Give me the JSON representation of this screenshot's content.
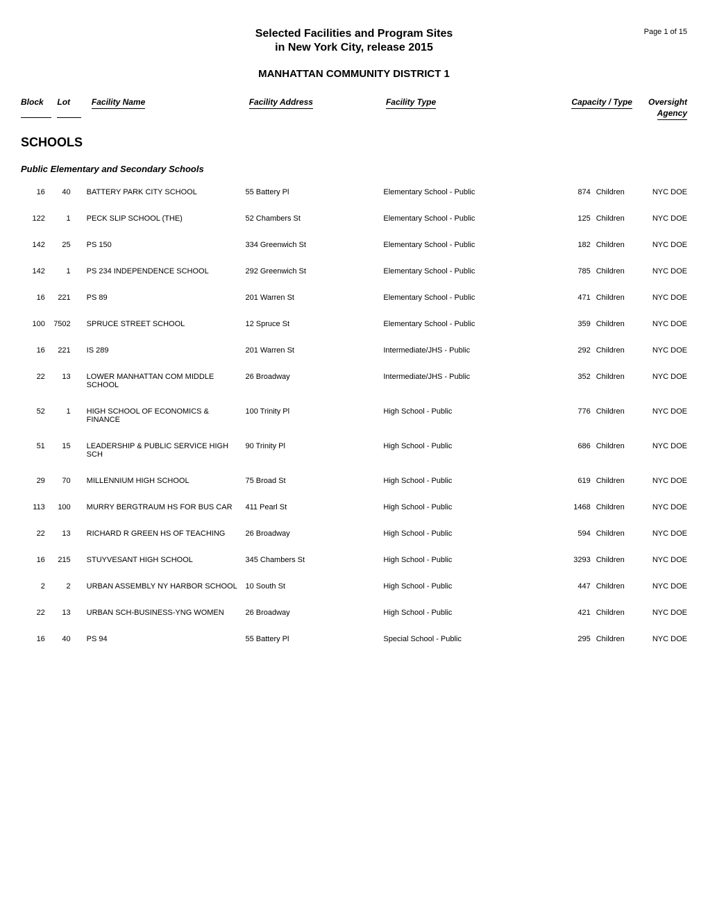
{
  "header": {
    "page_number": "Page 1 of 15",
    "title_line1": "Selected Facilities and Program Sites",
    "title_line2": "in New York City, release 2015",
    "district": "MANHATTAN COMMUNITY DISTRICT 1"
  },
  "columns": {
    "block": "Block",
    "lot": "Lot",
    "name": "Facility Name",
    "address": "Facility Address",
    "type": "Facility Type",
    "capacity": "Capacity / Type",
    "agency_line1": "Oversight",
    "agency_line2": "Agency"
  },
  "section": {
    "title": "SCHOOLS",
    "subsection": "Public Elementary and Secondary Schools"
  },
  "rows": [
    {
      "block": "16",
      "lot": "40",
      "name": "BATTERY PARK CITY SCHOOL",
      "address": "55 Battery Pl",
      "type": "Elementary School - Public",
      "capacity": "874",
      "capacity_type": "Children",
      "agency": "NYC DOE"
    },
    {
      "block": "122",
      "lot": "1",
      "name": "PECK SLIP SCHOOL (THE)",
      "address": "52 Chambers St",
      "type": "Elementary School - Public",
      "capacity": "125",
      "capacity_type": "Children",
      "agency": "NYC DOE"
    },
    {
      "block": "142",
      "lot": "25",
      "name": "PS 150",
      "address": "334 Greenwich St",
      "type": "Elementary School - Public",
      "capacity": "182",
      "capacity_type": "Children",
      "agency": "NYC DOE"
    },
    {
      "block": "142",
      "lot": "1",
      "name": "PS 234 INDEPENDENCE SCHOOL",
      "address": "292 Greenwich St",
      "type": "Elementary School - Public",
      "capacity": "785",
      "capacity_type": "Children",
      "agency": "NYC DOE"
    },
    {
      "block": "16",
      "lot": "221",
      "name": "PS 89",
      "address": "201 Warren St",
      "type": "Elementary School - Public",
      "capacity": "471",
      "capacity_type": "Children",
      "agency": "NYC DOE"
    },
    {
      "block": "100",
      "lot": "7502",
      "name": "SPRUCE STREET SCHOOL",
      "address": "12 Spruce St",
      "type": "Elementary School - Public",
      "capacity": "359",
      "capacity_type": "Children",
      "agency": "NYC DOE"
    },
    {
      "block": "16",
      "lot": "221",
      "name": "IS 289",
      "address": "201 Warren St",
      "type": "Intermediate/JHS - Public",
      "capacity": "292",
      "capacity_type": "Children",
      "agency": "NYC DOE"
    },
    {
      "block": "22",
      "lot": "13",
      "name": "LOWER MANHATTAN COM MIDDLE SCHOOL",
      "address": "26 Broadway",
      "type": "Intermediate/JHS - Public",
      "capacity": "352",
      "capacity_type": "Children",
      "agency": "NYC DOE"
    },
    {
      "block": "52",
      "lot": "1",
      "name": "HIGH SCHOOL OF ECONOMICS & FINANCE",
      "address": "100 Trinity Pl",
      "type": "High School - Public",
      "capacity": "776",
      "capacity_type": "Children",
      "agency": "NYC DOE"
    },
    {
      "block": "51",
      "lot": "15",
      "name": "LEADERSHIP & PUBLIC SERVICE HIGH SCH",
      "address": "90 Trinity Pl",
      "type": "High School - Public",
      "capacity": "686",
      "capacity_type": "Children",
      "agency": "NYC DOE"
    },
    {
      "block": "29",
      "lot": "70",
      "name": "MILLENNIUM HIGH SCHOOL",
      "address": "75 Broad St",
      "type": "High School - Public",
      "capacity": "619",
      "capacity_type": "Children",
      "agency": "NYC DOE"
    },
    {
      "block": "113",
      "lot": "100",
      "name": "MURRY BERGTRAUM HS FOR BUS CAR",
      "address": "411 Pearl St",
      "type": "High School - Public",
      "capacity": "1468",
      "capacity_type": "Children",
      "agency": "NYC DOE"
    },
    {
      "block": "22",
      "lot": "13",
      "name": "RICHARD R GREEN HS OF TEACHING",
      "address": "26 Broadway",
      "type": "High School - Public",
      "capacity": "594",
      "capacity_type": "Children",
      "agency": "NYC DOE"
    },
    {
      "block": "16",
      "lot": "215",
      "name": "STUYVESANT HIGH SCHOOL",
      "address": "345 Chambers St",
      "type": "High School - Public",
      "capacity": "3293",
      "capacity_type": "Children",
      "agency": "NYC DOE"
    },
    {
      "block": "2",
      "lot": "2",
      "name": "URBAN ASSEMBLY NY HARBOR SCHOOL",
      "address": "10 South St",
      "type": "High School - Public",
      "capacity": "447",
      "capacity_type": "Children",
      "agency": "NYC DOE"
    },
    {
      "block": "22",
      "lot": "13",
      "name": "URBAN SCH-BUSINESS-YNG WOMEN",
      "address": "26 Broadway",
      "type": "High School - Public",
      "capacity": "421",
      "capacity_type": "Children",
      "agency": "NYC DOE"
    },
    {
      "block": "16",
      "lot": "40",
      "name": "PS 94",
      "address": "55 Battery Pl",
      "type": "Special School - Public",
      "capacity": "295",
      "capacity_type": "Children",
      "agency": "NYC DOE"
    }
  ]
}
